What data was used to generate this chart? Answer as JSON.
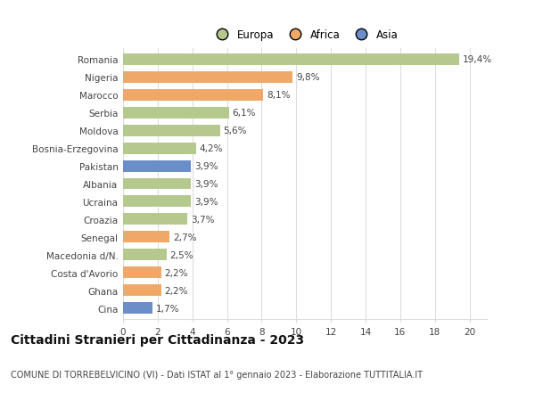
{
  "countries": [
    "Romania",
    "Nigeria",
    "Marocco",
    "Serbia",
    "Moldova",
    "Bosnia-Erzegovina",
    "Pakistan",
    "Albania",
    "Ucraina",
    "Croazia",
    "Senegal",
    "Macedonia d/N.",
    "Costa d'Avorio",
    "Ghana",
    "Cina"
  ],
  "values": [
    19.4,
    9.8,
    8.1,
    6.1,
    5.6,
    4.2,
    3.9,
    3.9,
    3.9,
    3.7,
    2.7,
    2.5,
    2.2,
    2.2,
    1.7
  ],
  "labels": [
    "19,4%",
    "9,8%",
    "8,1%",
    "6,1%",
    "5,6%",
    "4,2%",
    "3,9%",
    "3,9%",
    "3,9%",
    "3,7%",
    "2,7%",
    "2,5%",
    "2,2%",
    "2,2%",
    "1,7%"
  ],
  "continents": [
    "Europa",
    "Africa",
    "Africa",
    "Europa",
    "Europa",
    "Europa",
    "Asia",
    "Europa",
    "Europa",
    "Europa",
    "Africa",
    "Europa",
    "Africa",
    "Africa",
    "Asia"
  ],
  "colors": {
    "Europa": "#b5c98e",
    "Africa": "#f0a868",
    "Asia": "#6b8ec9"
  },
  "xlim": [
    0,
    21
  ],
  "xticks": [
    0,
    2,
    4,
    6,
    8,
    10,
    12,
    14,
    16,
    18,
    20
  ],
  "title": "Cittadini Stranieri per Cittadinanza - 2023",
  "subtitle": "COMUNE DI TORREBELVICINO (VI) - Dati ISTAT al 1° gennaio 2023 - Elaborazione TUTTITALIA.IT",
  "background_color": "#ffffff",
  "bar_height": 0.65,
  "grid_color": "#dddddd",
  "label_fontsize": 7.5,
  "tick_fontsize": 7.5,
  "title_fontsize": 10,
  "subtitle_fontsize": 7,
  "legend_fontsize": 8.5
}
